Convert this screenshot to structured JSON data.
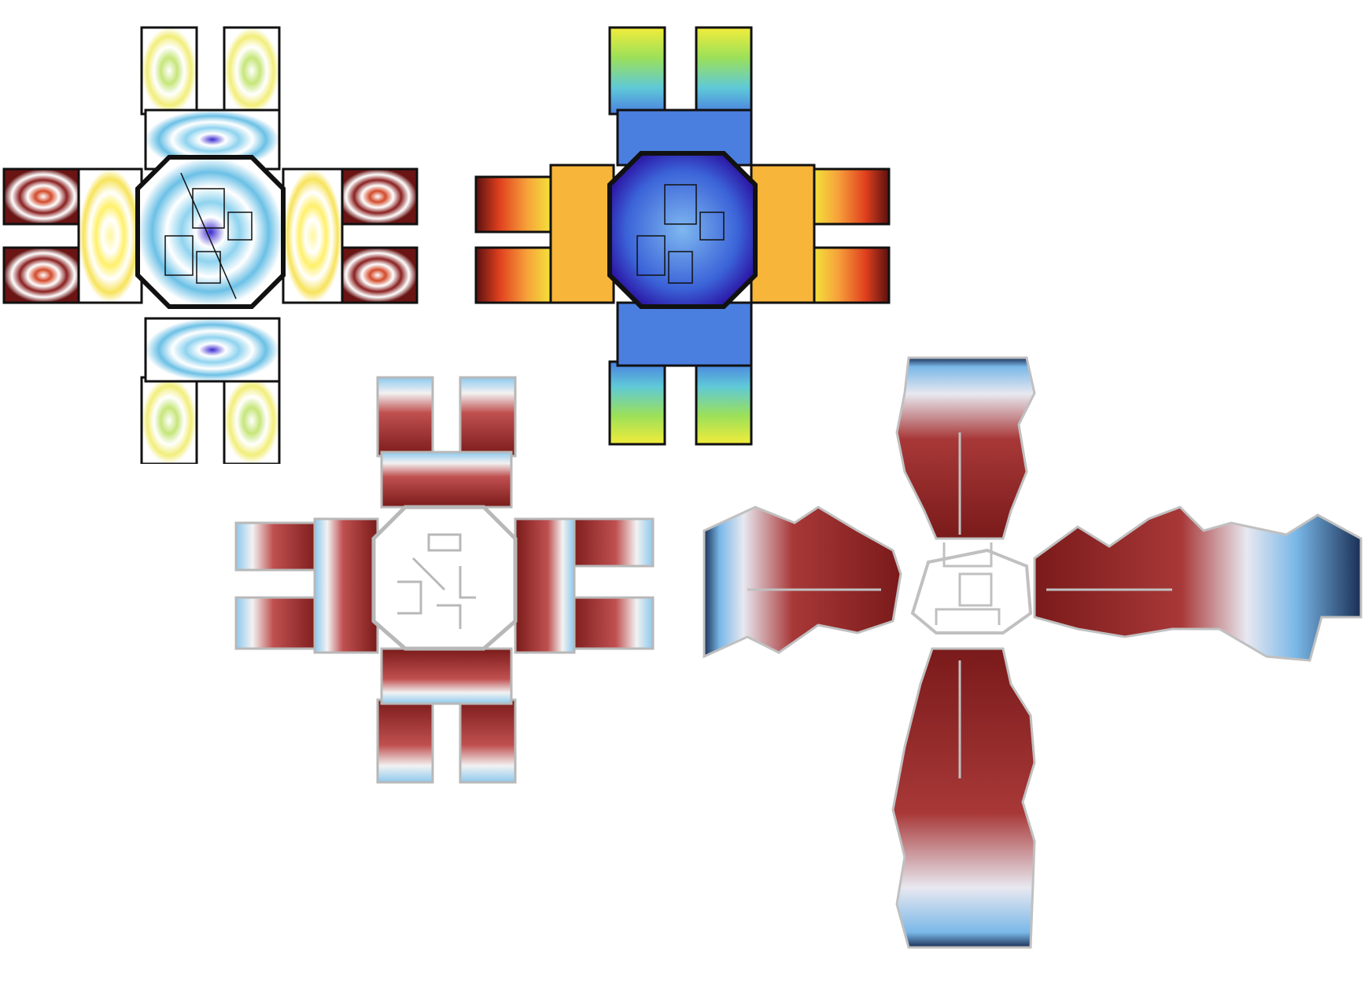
{
  "panels": [
    {
      "id": "concentric-plan",
      "kind": "plan-a",
      "palette": [
        "#3a2ad0",
        "#8fd3ef",
        "#d6ef8a",
        "#fff06a",
        "#f7a36a",
        "#d24a2a",
        "#6a1414"
      ]
    },
    {
      "id": "gradient-plan",
      "kind": "plan-a",
      "palette": [
        "#2c1aa8",
        "#4a7fe0",
        "#5fc9d8",
        "#9be05a",
        "#f2ec3a",
        "#f7a23a",
        "#e0401e",
        "#5a1010"
      ]
    },
    {
      "id": "visibility-plan-octagon",
      "kind": "plan-b",
      "palette": [
        "#7a1a1a",
        "#c05050",
        "#f2f2f2",
        "#8cc8ee"
      ]
    },
    {
      "id": "visibility-plan-cross",
      "kind": "plan-c",
      "palette": [
        "#7a1a1a",
        "#c05050",
        "#f2f2f2",
        "#7ab8e8",
        "#1a2f55"
      ]
    }
  ]
}
